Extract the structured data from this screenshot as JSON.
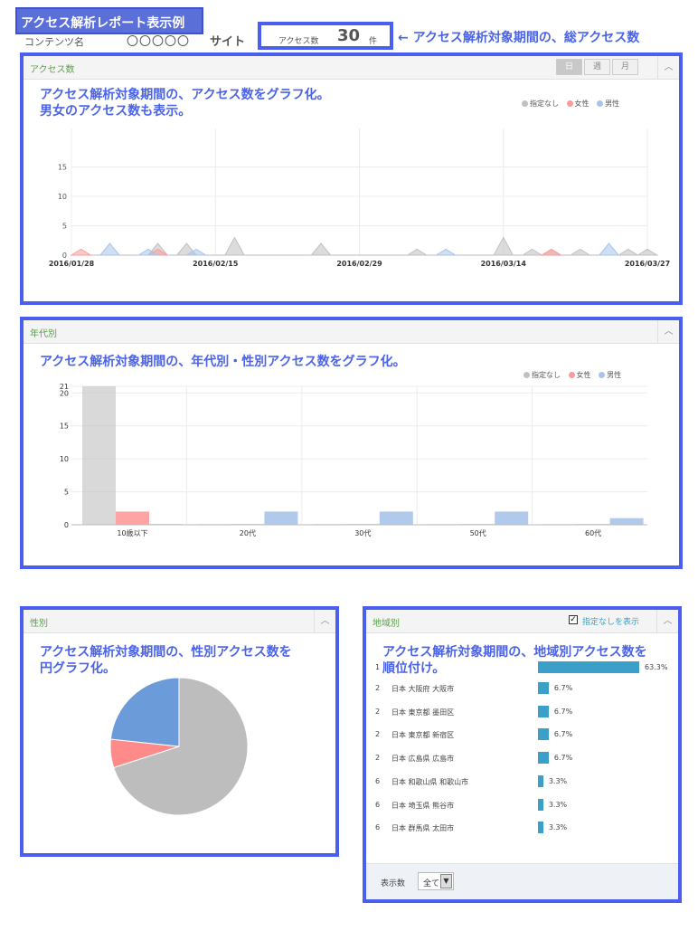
{
  "header": {
    "title": "アクセス解析レポート表示例",
    "content_label": "コンテンツ名",
    "content_value": "〇〇〇〇〇",
    "site_label": "サイト",
    "access_label": "アクセス数",
    "access_count": "30",
    "access_unit": "件",
    "total_note": "← アクセス解析対象期間の、総アクセス数"
  },
  "legend": {
    "none": "指定なし",
    "female": "女性",
    "male": "男性"
  },
  "colors": {
    "none": "#c0c0c0",
    "female": "#ff9a9a",
    "male": "#a8c4ea",
    "accent": "#4a5ff0",
    "bar": "#3aa0c8"
  },
  "access_panel": {
    "title": "アクセス数",
    "note_line1": "アクセス解析対象期間の、アクセス数をグラフ化。",
    "note_line2": "男女のアクセス数も表示。",
    "periods": [
      "日",
      "週",
      "月"
    ],
    "active_period": "日"
  },
  "age_panel": {
    "title": "年代別",
    "note": "アクセス解析対象期間の、年代別・性別アクセス数をグラフ化。"
  },
  "gender_panel": {
    "title": "性別",
    "note_line1": "アクセス解析対象期間の、性別アクセス数を",
    "note_line2": "円グラフ化。"
  },
  "region_panel": {
    "title": "地域別",
    "show_unspecified": "指定なしを表示",
    "note_line1": "アクセス解析対象期間の、地域別アクセス数を",
    "note_line2": "順位付け。",
    "rows": [
      {
        "rank": "1",
        "name": "",
        "pct": "63.3%",
        "value": 63.3
      },
      {
        "rank": "2",
        "name": "日本 大阪府 大阪市",
        "pct": "6.7%",
        "value": 6.7
      },
      {
        "rank": "2",
        "name": "日本 東京都 墨田区",
        "pct": "6.7%",
        "value": 6.7
      },
      {
        "rank": "2",
        "name": "日本 東京都 新宿区",
        "pct": "6.7%",
        "value": 6.7
      },
      {
        "rank": "2",
        "name": "日本 広島県 広島市",
        "pct": "6.7%",
        "value": 6.7
      },
      {
        "rank": "6",
        "name": "日本 和歌山県 和歌山市",
        "pct": "3.3%",
        "value": 3.3
      },
      {
        "rank": "6",
        "name": "日本 埼玉県 熊谷市",
        "pct": "3.3%",
        "value": 3.3
      },
      {
        "rank": "6",
        "name": "日本 群馬県 太田市",
        "pct": "3.3%",
        "value": 3.3
      }
    ],
    "display_label": "表示数",
    "display_value": "全て"
  },
  "chart_data": [
    {
      "type": "area",
      "x_labels": [
        "2016/01/28",
        "2016/02/15",
        "2016/02/29",
        "2016/03/14",
        "2016/03/27"
      ],
      "y_ticks": [
        0,
        5,
        10,
        15
      ],
      "ylim": [
        0,
        20
      ],
      "days": 60,
      "series": [
        {
          "name": "指定なし",
          "peaks": [
            [
              9,
              2
            ],
            [
              12,
              2
            ],
            [
              17,
              3
            ],
            [
              26,
              2
            ],
            [
              36,
              1
            ],
            [
              45,
              3
            ],
            [
              48,
              1
            ],
            [
              50,
              1
            ],
            [
              53,
              1
            ],
            [
              58,
              1
            ],
            [
              60,
              1
            ]
          ]
        },
        {
          "name": "女性",
          "peaks": [
            [
              1,
              1
            ],
            [
              9,
              1
            ],
            [
              50,
              1
            ]
          ]
        },
        {
          "name": "男性",
          "peaks": [
            [
              4,
              2
            ],
            [
              8,
              1
            ],
            [
              13,
              1
            ],
            [
              39,
              1
            ],
            [
              56,
              2
            ]
          ]
        }
      ]
    },
    {
      "type": "bar",
      "categories": [
        "10歳以下",
        "20代",
        "30代",
        "50代",
        "60代"
      ],
      "y_ticks": [
        0,
        5,
        10,
        15,
        20,
        21
      ],
      "ylim": [
        0,
        21
      ],
      "series": [
        {
          "name": "指定なし",
          "values": [
            21,
            0,
            0,
            0,
            0
          ]
        },
        {
          "name": "女性",
          "values": [
            2,
            0,
            0,
            0,
            0
          ]
        },
        {
          "name": "男性",
          "values": [
            0,
            2,
            2,
            2,
            1
          ]
        }
      ]
    },
    {
      "type": "pie",
      "labels": [
        "指定なし",
        "女性",
        "男性"
      ],
      "values": [
        21,
        2,
        7
      ]
    }
  ]
}
